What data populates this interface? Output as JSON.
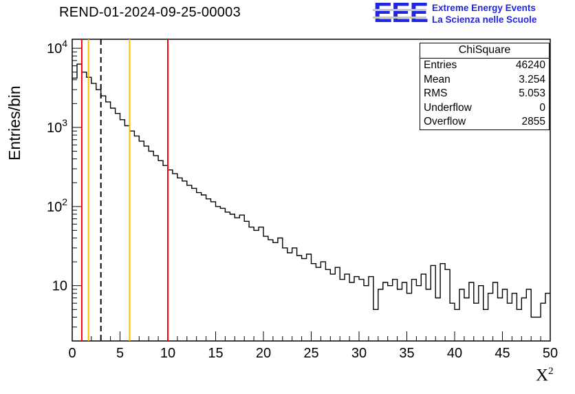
{
  "title": "REND-01-2024-09-25-00003",
  "logo": {
    "eee": "EEE",
    "line1": "Extreme Energy Events",
    "line2": "La Scienza nelle Scuole",
    "color": "#2026e0",
    "stripe_color": "#c9c9c9"
  },
  "labels": {
    "x_base": "X",
    "x_exp": "2"
  },
  "stats": {
    "title": "ChiSquare",
    "rows": [
      {
        "label": "Entries",
        "value": "46240"
      },
      {
        "label": "Mean",
        "value": "3.254"
      },
      {
        "label": "RMS",
        "value": "5.053"
      },
      {
        "label": "Underflow",
        "value": "0"
      },
      {
        "label": "Overflow",
        "value": "2855"
      }
    ]
  },
  "chart_data": {
    "type": "bar",
    "style": "step-histogram",
    "title": "REND-01-2024-09-25-00003",
    "xlabel": "X^2",
    "ylabel": "Entries/bin",
    "x_range": [
      0,
      50
    ],
    "y_range": [
      2,
      13000
    ],
    "y_scale": "log",
    "grid": false,
    "bin_start": 0,
    "bin_width": 0.5,
    "counts": [
      4200,
      6300,
      5000,
      4300,
      3600,
      3000,
      2500,
      2100,
      1750,
      1500,
      1250,
      1050,
      900,
      780,
      670,
      580,
      500,
      440,
      380,
      330,
      290,
      260,
      230,
      210,
      185,
      170,
      150,
      140,
      125,
      115,
      100,
      95,
      85,
      80,
      72,
      78,
      65,
      55,
      50,
      55,
      42,
      38,
      35,
      40,
      30,
      26,
      30,
      24,
      22,
      25,
      19,
      17,
      20,
      16,
      14,
      17,
      12,
      14,
      11,
      13,
      12,
      10,
      13,
      5,
      9,
      11,
      10,
      12,
      9,
      11,
      8,
      12,
      10,
      14,
      9,
      18,
      7,
      19,
      16,
      6,
      5,
      9,
      7,
      11,
      6,
      10,
      5,
      8,
      11,
      7,
      9,
      6,
      8,
      5,
      7,
      9,
      4,
      4,
      6,
      8
    ],
    "x_ticks": [
      0,
      5,
      10,
      15,
      20,
      25,
      30,
      35,
      40,
      45,
      50
    ],
    "y_ticks": [
      {
        "value": 10,
        "coef": "10",
        "exp": ""
      },
      {
        "value": 100,
        "coef": "10",
        "exp": "2"
      },
      {
        "value": 1000,
        "coef": "10",
        "exp": "3"
      },
      {
        "value": 10000,
        "coef": "10",
        "exp": "4"
      }
    ],
    "vlines": [
      {
        "x": 1,
        "color": "#ff0000",
        "dash": false
      },
      {
        "x": 1.7,
        "color": "#ffbb00",
        "dash": false
      },
      {
        "x": 3,
        "color": "#000000",
        "dash": true
      },
      {
        "x": 6,
        "color": "#ffbb00",
        "dash": false
      },
      {
        "x": 10,
        "color": "#ff0000",
        "dash": false
      }
    ],
    "stats": {
      "entries": 46240,
      "mean": 3.254,
      "rms": 5.053,
      "underflow": 0,
      "overflow": 2855
    },
    "legend_position": "none"
  }
}
